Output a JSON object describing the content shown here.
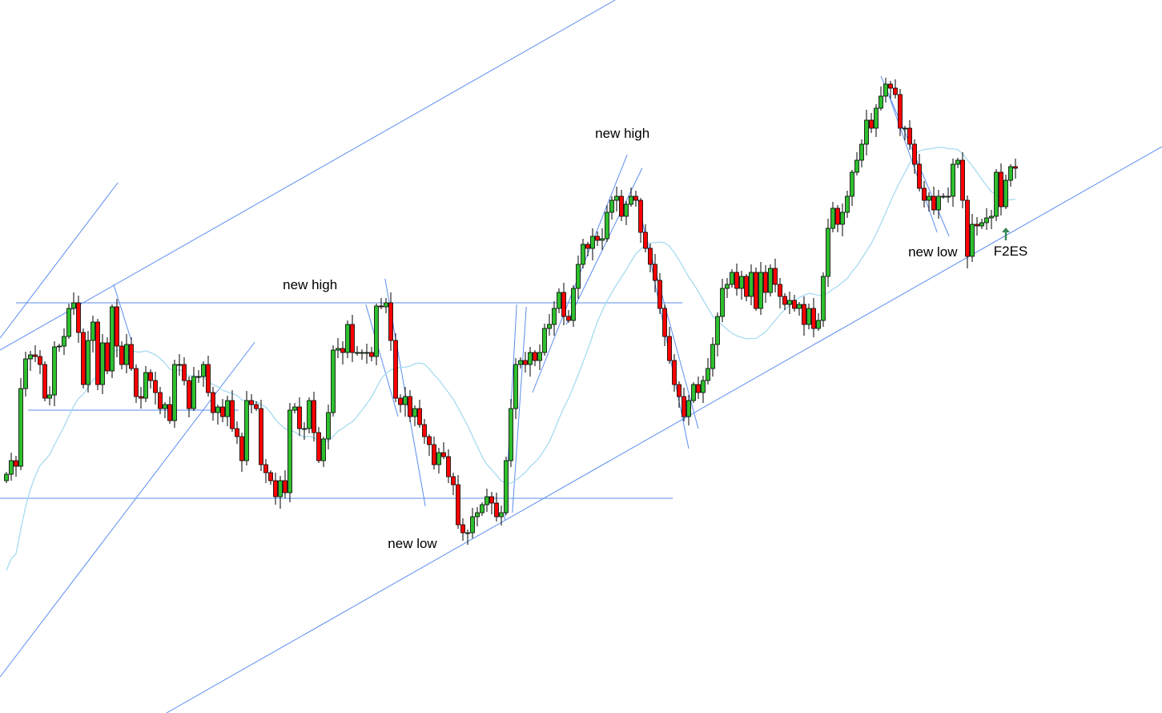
{
  "chart_data": {
    "type": "candlestick",
    "title": "",
    "xlabel": "",
    "ylabel": "",
    "grid": false,
    "axes_shown": false,
    "first_open": 300,
    "closes": [
      308,
      325,
      318,
      415,
      452,
      457,
      455,
      445,
      403,
      407,
      467,
      468,
      480,
      515,
      522,
      485,
      420,
      475,
      498,
      420,
      472,
      437,
      517,
      468,
      445,
      470,
      440,
      405,
      403,
      435,
      425,
      410,
      390,
      395,
      375,
      445,
      445,
      425,
      390,
      430,
      430,
      445,
      410,
      385,
      392,
      380,
      400,
      365,
      355,
      325,
      400,
      395,
      390,
      320,
      310,
      300,
      280,
      300,
      285,
      388,
      392,
      365,
      365,
      400,
      360,
      325,
      352,
      385,
      463,
      465,
      460,
      495,
      460,
      460,
      460,
      460,
      455,
      518,
      517,
      522,
      475,
      403,
      395,
      405,
      380,
      390,
      370,
      355,
      345,
      320,
      335,
      330,
      305,
      295,
      245,
      235,
      235,
      255,
      260,
      270,
      280,
      272,
      255,
      260,
      325,
      390,
      445,
      450,
      445,
      460,
      450,
      460,
      490,
      495,
      515,
      535,
      505,
      500,
      540,
      570,
      595,
      590,
      605,
      600,
      602,
      635,
      650,
      655,
      630,
      645,
      655,
      650,
      610,
      590,
      570,
      550,
      515,
      480,
      450,
      420,
      405,
      380,
      400,
      420,
      410,
      425,
      440,
      470,
      505,
      540,
      545,
      560,
      540,
      555,
      530,
      560,
      515,
      560,
      535,
      565,
      545,
      530,
      520,
      525,
      515,
      520,
      495,
      515,
      490,
      500,
      555,
      615,
      640,
      620,
      635,
      655,
      685,
      700,
      720,
      750,
      740,
      765,
      780,
      795,
      790,
      782,
      740,
      740,
      720,
      695,
      665,
      650,
      655,
      638,
      655,
      655,
      655,
      695,
      700,
      650,
      580,
      620,
      618,
      622,
      628,
      630,
      685,
      642,
      675,
      692,
      690
    ],
    "moving_average": {
      "period": 20,
      "color": "#a6dbf0"
    },
    "colors": {
      "up": "#2fbf2f",
      "down": "#ff0000",
      "outline": "#000000",
      "trendline": "#5b8def"
    },
    "trendlines": [
      [
        -1.33,
        463,
        126.7,
        900
      ],
      [
        -1.33,
        478,
        23.2,
        672
      ],
      [
        -1.33,
        55,
        51.7,
        473
      ],
      [
        33.3,
        10,
        240.5,
        717
      ],
      [
        2,
        522,
        140.7,
        522
      ],
      [
        4.5,
        388,
        48.3,
        388
      ],
      [
        -1.33,
        278,
        138.7,
        278
      ],
      [
        22.3,
        545,
        26,
        475
      ],
      [
        74.8,
        520,
        81.5,
        380
      ],
      [
        78.8,
        552,
        87.2,
        268
      ],
      [
        106.2,
        520,
        103.7,
        250
      ],
      [
        108.2,
        517,
        105.3,
        260
      ],
      [
        109.5,
        410,
        129.2,
        707
      ],
      [
        116.5,
        495,
        132.3,
        690
      ],
      [
        131.3,
        655,
        142,
        340
      ],
      [
        132,
        630,
        144,
        365
      ],
      [
        182,
        805,
        196.2,
        605
      ],
      [
        183.7,
        780,
        193.7,
        610
      ]
    ],
    "annotations": [
      {
        "text": "new high",
        "x": 63.2,
        "y": 545
      },
      {
        "text": "new high",
        "x": 128.2,
        "y": 734
      },
      {
        "text": "new low",
        "x": 84.5,
        "y": 222
      },
      {
        "text": "new low",
        "x": 192.8,
        "y": 586
      },
      {
        "text": "F2ES",
        "x": 209,
        "y": 587
      }
    ],
    "signal_arrow": {
      "x": 208,
      "y_from": 600,
      "y_to": 616,
      "color": "#3a8a5a"
    }
  }
}
